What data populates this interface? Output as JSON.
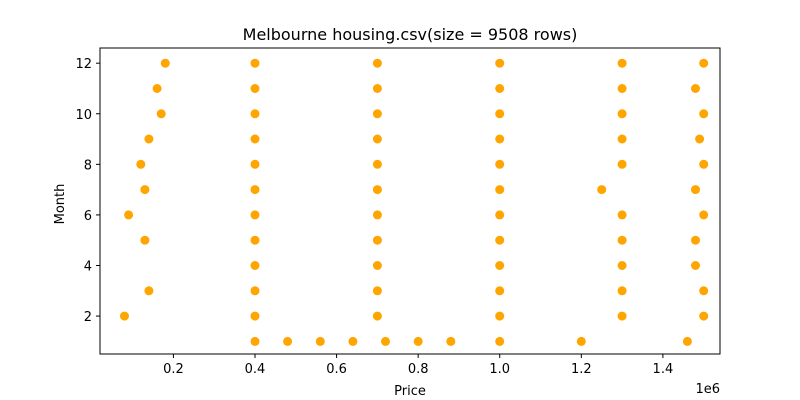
{
  "chart_data": {
    "type": "scatter",
    "title": "Melbourne housing.csv(size = 9508 rows)",
    "xlabel": "Price",
    "ylabel": "Month",
    "x_offset_label": "1e6",
    "x_scale": 1000000,
    "xlim": [
      20000,
      1540000
    ],
    "ylim": [
      0.5,
      12.6
    ],
    "xticks": [
      200000,
      400000,
      600000,
      800000,
      1000000,
      1200000,
      1400000
    ],
    "xtick_labels": [
      "0.2",
      "0.4",
      "0.6",
      "0.8",
      "1.0",
      "1.2",
      "1.4"
    ],
    "yticks": [
      2,
      4,
      6,
      8,
      10,
      12
    ],
    "ytick_labels": [
      "2",
      "4",
      "6",
      "8",
      "10",
      "12"
    ],
    "grid": false,
    "legend": "none",
    "marker_color": "#FFA500",
    "series": [
      {
        "values": [
          {
            "x": 400000,
            "y": 1
          },
          {
            "x": 480000,
            "y": 1
          },
          {
            "x": 560000,
            "y": 1
          },
          {
            "x": 640000,
            "y": 1
          },
          {
            "x": 720000,
            "y": 1
          },
          {
            "x": 800000,
            "y": 1
          },
          {
            "x": 880000,
            "y": 1
          },
          {
            "x": 1000000,
            "y": 1
          },
          {
            "x": 1200000,
            "y": 1
          },
          {
            "x": 1460000,
            "y": 1
          },
          {
            "x": 80000,
            "y": 2
          },
          {
            "x": 400000,
            "y": 2
          },
          {
            "x": 700000,
            "y": 2
          },
          {
            "x": 1000000,
            "y": 2
          },
          {
            "x": 1300000,
            "y": 2
          },
          {
            "x": 1500000,
            "y": 2
          },
          {
            "x": 140000,
            "y": 3
          },
          {
            "x": 400000,
            "y": 3
          },
          {
            "x": 700000,
            "y": 3
          },
          {
            "x": 1000000,
            "y": 3
          },
          {
            "x": 1300000,
            "y": 3
          },
          {
            "x": 1500000,
            "y": 3
          },
          {
            "x": 400000,
            "y": 4
          },
          {
            "x": 700000,
            "y": 4
          },
          {
            "x": 1000000,
            "y": 4
          },
          {
            "x": 1300000,
            "y": 4
          },
          {
            "x": 1480000,
            "y": 4
          },
          {
            "x": 130000,
            "y": 5
          },
          {
            "x": 400000,
            "y": 5
          },
          {
            "x": 700000,
            "y": 5
          },
          {
            "x": 1000000,
            "y": 5
          },
          {
            "x": 1300000,
            "y": 5
          },
          {
            "x": 1480000,
            "y": 5
          },
          {
            "x": 90000,
            "y": 6
          },
          {
            "x": 400000,
            "y": 6
          },
          {
            "x": 700000,
            "y": 6
          },
          {
            "x": 1000000,
            "y": 6
          },
          {
            "x": 1300000,
            "y": 6
          },
          {
            "x": 1500000,
            "y": 6
          },
          {
            "x": 130000,
            "y": 7
          },
          {
            "x": 400000,
            "y": 7
          },
          {
            "x": 700000,
            "y": 7
          },
          {
            "x": 1000000,
            "y": 7
          },
          {
            "x": 1250000,
            "y": 7
          },
          {
            "x": 1480000,
            "y": 7
          },
          {
            "x": 120000,
            "y": 8
          },
          {
            "x": 400000,
            "y": 8
          },
          {
            "x": 700000,
            "y": 8
          },
          {
            "x": 1000000,
            "y": 8
          },
          {
            "x": 1300000,
            "y": 8
          },
          {
            "x": 1500000,
            "y": 8
          },
          {
            "x": 140000,
            "y": 9
          },
          {
            "x": 400000,
            "y": 9
          },
          {
            "x": 700000,
            "y": 9
          },
          {
            "x": 1000000,
            "y": 9
          },
          {
            "x": 1300000,
            "y": 9
          },
          {
            "x": 1490000,
            "y": 9
          },
          {
            "x": 170000,
            "y": 10
          },
          {
            "x": 400000,
            "y": 10
          },
          {
            "x": 700000,
            "y": 10
          },
          {
            "x": 1000000,
            "y": 10
          },
          {
            "x": 1300000,
            "y": 10
          },
          {
            "x": 1500000,
            "y": 10
          },
          {
            "x": 160000,
            "y": 11
          },
          {
            "x": 400000,
            "y": 11
          },
          {
            "x": 700000,
            "y": 11
          },
          {
            "x": 1000000,
            "y": 11
          },
          {
            "x": 1300000,
            "y": 11
          },
          {
            "x": 1480000,
            "y": 11
          },
          {
            "x": 180000,
            "y": 12
          },
          {
            "x": 400000,
            "y": 12
          },
          {
            "x": 700000,
            "y": 12
          },
          {
            "x": 1000000,
            "y": 12
          },
          {
            "x": 1300000,
            "y": 12
          },
          {
            "x": 1500000,
            "y": 12
          }
        ]
      }
    ]
  }
}
